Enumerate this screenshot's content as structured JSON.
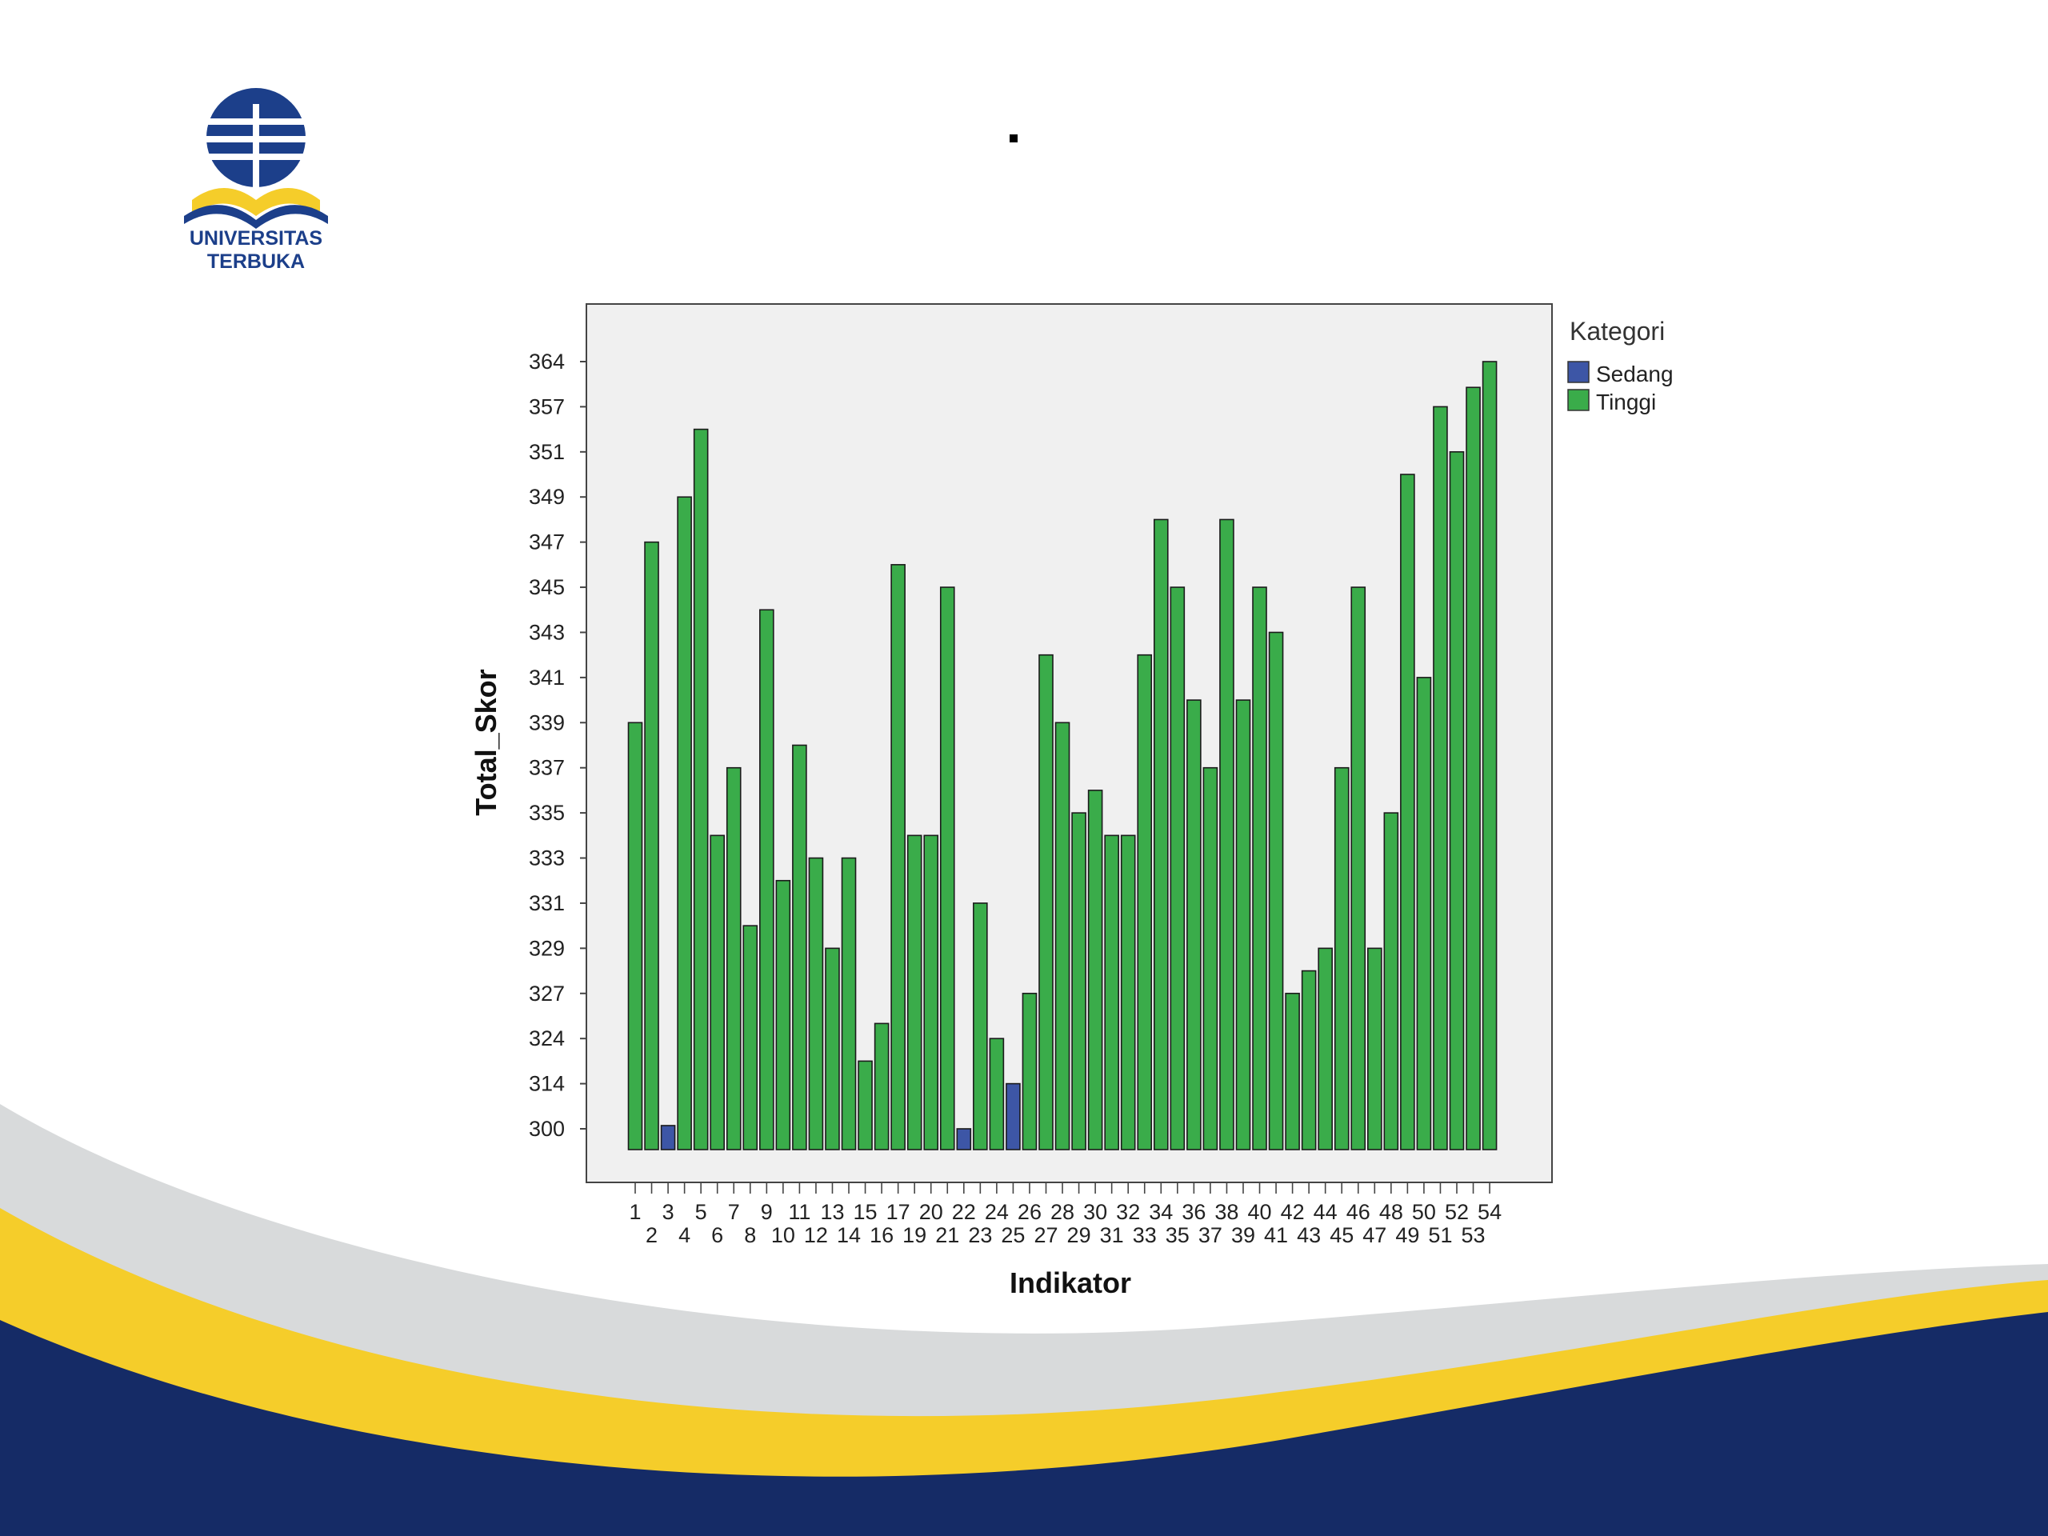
{
  "logo": {
    "text": "UNIVERSITAS TERBUKA"
  },
  "colors": {
    "bar_tinggi": "#3aac4a",
    "bar_sedang": "#3d56a6",
    "plot_bg": "#f0f0f0",
    "navy": "#152b66",
    "yellow": "#f5cd2a",
    "gray": "#d8dadb"
  },
  "chart_data": {
    "type": "bar",
    "title": "",
    "xlabel": "Indikator",
    "ylabel": "Total_Skor",
    "ytick_labels": [
      "300",
      "314",
      "324",
      "327",
      "329",
      "331",
      "333",
      "335",
      "337",
      "339",
      "341",
      "343",
      "345",
      "347",
      "349",
      "351",
      "357",
      "364"
    ],
    "legend": {
      "title": "Kategori",
      "position": "right",
      "entries": [
        {
          "name": "Sedang",
          "color": "#3d56a6"
        },
        {
          "name": "Tinggi",
          "color": "#3aac4a"
        }
      ]
    },
    "categories": [
      "1",
      "2",
      "3",
      "4",
      "5",
      "6",
      "7",
      "8",
      "9",
      "10",
      "11",
      "12",
      "13",
      "14",
      "15",
      "16",
      "17",
      "19",
      "20",
      "21",
      "22",
      "23",
      "24",
      "25",
      "26",
      "27",
      "28",
      "29",
      "30",
      "31",
      "32",
      "33",
      "34",
      "35",
      "36",
      "37",
      "38",
      "39",
      "40",
      "41",
      "42",
      "43",
      "44",
      "45",
      "46",
      "47",
      "48",
      "49",
      "50",
      "51",
      "52",
      "53",
      "54"
    ],
    "values": [
      339,
      347,
      301,
      349,
      354,
      334,
      337,
      330,
      344,
      332,
      338,
      333,
      329,
      333,
      319,
      325,
      346,
      334,
      334,
      345,
      300,
      331,
      324,
      314,
      327,
      342,
      339,
      335,
      336,
      334,
      334,
      342,
      348,
      345,
      340,
      337,
      348,
      340,
      345,
      343,
      327,
      328,
      329,
      337,
      345,
      329,
      335,
      350,
      341,
      357,
      351,
      360,
      364
    ],
    "kategori": [
      "Tinggi",
      "Tinggi",
      "Sedang",
      "Tinggi",
      "Tinggi",
      "Tinggi",
      "Tinggi",
      "Tinggi",
      "Tinggi",
      "Tinggi",
      "Tinggi",
      "Tinggi",
      "Tinggi",
      "Tinggi",
      "Tinggi",
      "Tinggi",
      "Tinggi",
      "Tinggi",
      "Tinggi",
      "Tinggi",
      "Sedang",
      "Tinggi",
      "Tinggi",
      "Sedang",
      "Tinggi",
      "Tinggi",
      "Tinggi",
      "Tinggi",
      "Tinggi",
      "Tinggi",
      "Tinggi",
      "Tinggi",
      "Tinggi",
      "Tinggi",
      "Tinggi",
      "Tinggi",
      "Tinggi",
      "Tinggi",
      "Tinggi",
      "Tinggi",
      "Tinggi",
      "Tinggi",
      "Tinggi",
      "Tinggi",
      "Tinggi",
      "Tinggi",
      "Tinggi",
      "Tinggi",
      "Tinggi",
      "Tinggi",
      "Tinggi",
      "Tinggi",
      "Tinggi"
    ],
    "grid": false
  }
}
